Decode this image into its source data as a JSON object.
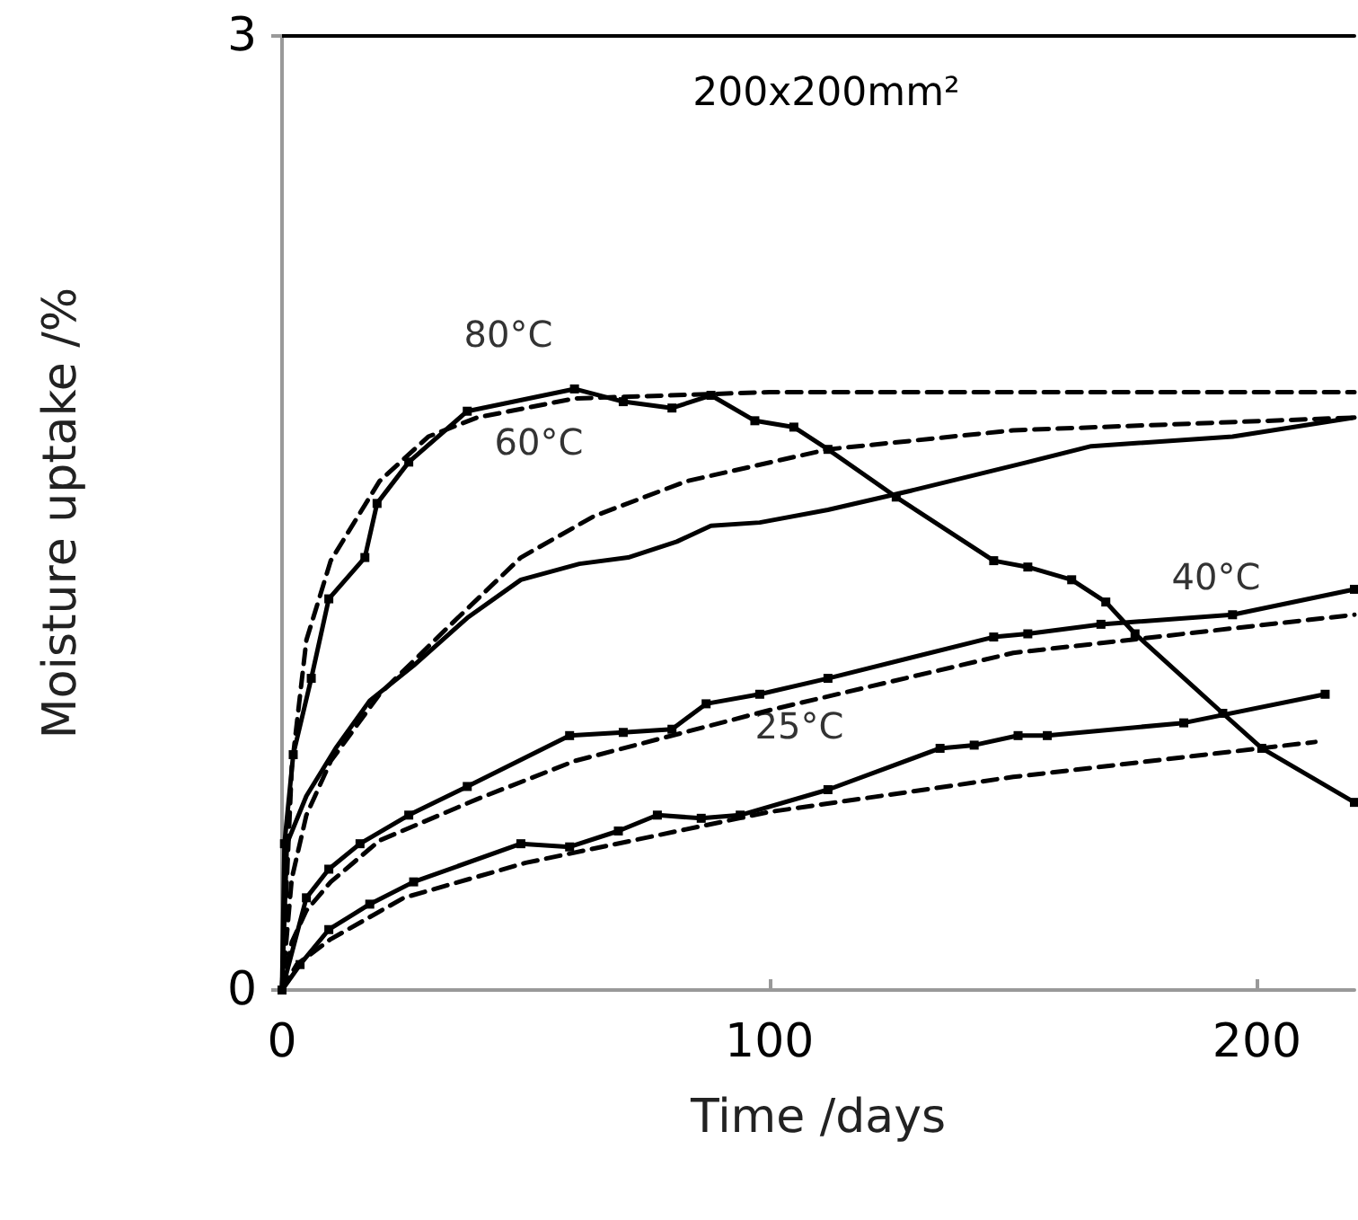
{
  "chart_data": {
    "type": "line",
    "title": "200x200mm²",
    "xlabel": "Time /days",
    "ylabel": "Moisture uptake /%",
    "xlim": [
      0,
      220
    ],
    "ylim": [
      0,
      3
    ],
    "xticks": [
      0,
      100,
      200
    ],
    "yticks": [
      0,
      3
    ],
    "grid": false,
    "annotations": [
      "80°C",
      "60°C",
      "40°C",
      "25°C"
    ],
    "series": [
      {
        "color": "#000000",
        "marker": "square",
        "line_style": "solid",
        "x": [
          0,
          0.5,
          2.3,
          6,
          9.6,
          17,
          19.5,
          26,
          38,
          60,
          70,
          80,
          88,
          97,
          105,
          112,
          126,
          146,
          153,
          162,
          169,
          175,
          193,
          201,
          220
        ],
        "values": [
          0,
          0.46,
          0.74,
          0.98,
          1.23,
          1.36,
          1.53,
          1.66,
          1.82,
          1.89,
          1.85,
          1.83,
          1.87,
          1.79,
          1.77,
          1.7,
          1.55,
          1.35,
          1.33,
          1.29,
          1.22,
          1.12,
          0.87,
          0.76,
          0.59
        ]
      },
      {
        "color": "#000000",
        "marker": "none",
        "line_style": "dashed",
        "x": [
          0,
          2,
          5,
          10,
          20,
          30,
          40,
          60,
          100,
          220
        ],
        "values": [
          0,
          0.7,
          1.1,
          1.35,
          1.6,
          1.74,
          1.8,
          1.86,
          1.88,
          1.88
        ]
      },
      {
        "color": "#000000",
        "marker": "none",
        "line_style": "solid",
        "x": [
          0,
          1,
          5,
          11,
          18,
          27,
          38,
          49,
          61,
          71,
          81,
          88,
          98,
          112,
          129,
          153,
          166,
          195,
          220
        ],
        "values": [
          0,
          0.46,
          0.61,
          0.76,
          0.91,
          1.02,
          1.17,
          1.29,
          1.34,
          1.36,
          1.41,
          1.46,
          1.47,
          1.51,
          1.57,
          1.66,
          1.71,
          1.74,
          1.8
        ]
      },
      {
        "color": "#000000",
        "marker": "none",
        "line_style": "dashed",
        "x": [
          0,
          2,
          5,
          10,
          20,
          34,
          49,
          64,
          83,
          112,
          150,
          220
        ],
        "values": [
          0,
          0.35,
          0.55,
          0.72,
          0.93,
          1.14,
          1.36,
          1.49,
          1.6,
          1.7,
          1.76,
          1.8
        ]
      },
      {
        "color": "#000000",
        "marker": "square",
        "line_style": "solid",
        "x": [
          0,
          5,
          9.6,
          16,
          26,
          38,
          59,
          70,
          80,
          87,
          98,
          112,
          146,
          153,
          168,
          195,
          220
        ],
        "values": [
          0,
          0.29,
          0.38,
          0.46,
          0.55,
          0.64,
          0.8,
          0.81,
          0.82,
          0.9,
          0.93,
          0.98,
          1.11,
          1.12,
          1.15,
          1.18,
          1.26
        ]
      },
      {
        "color": "#000000",
        "marker": "none",
        "line_style": "dashed",
        "x": [
          0,
          2,
          5,
          10,
          20,
          40,
          60,
          100,
          150,
          220
        ],
        "values": [
          0,
          0.15,
          0.25,
          0.34,
          0.47,
          0.6,
          0.72,
          0.88,
          1.06,
          1.18
        ]
      },
      {
        "color": "#000000",
        "marker": "square",
        "line_style": "solid",
        "x": [
          0,
          3.7,
          9.6,
          18,
          27,
          49,
          59,
          69,
          77,
          86,
          94,
          112,
          135,
          142,
          151,
          157,
          185,
          214
        ],
        "values": [
          0,
          0.08,
          0.19,
          0.27,
          0.34,
          0.46,
          0.45,
          0.5,
          0.55,
          0.54,
          0.55,
          0.63,
          0.76,
          0.77,
          0.8,
          0.8,
          0.84,
          0.93
        ]
      },
      {
        "color": "#000000",
        "marker": "none",
        "line_style": "dashed",
        "x": [
          0,
          3,
          10,
          25,
          50,
          100,
          150,
          212
        ],
        "values": [
          0,
          0.08,
          0.16,
          0.29,
          0.4,
          0.56,
          0.67,
          0.78
        ]
      }
    ]
  }
}
